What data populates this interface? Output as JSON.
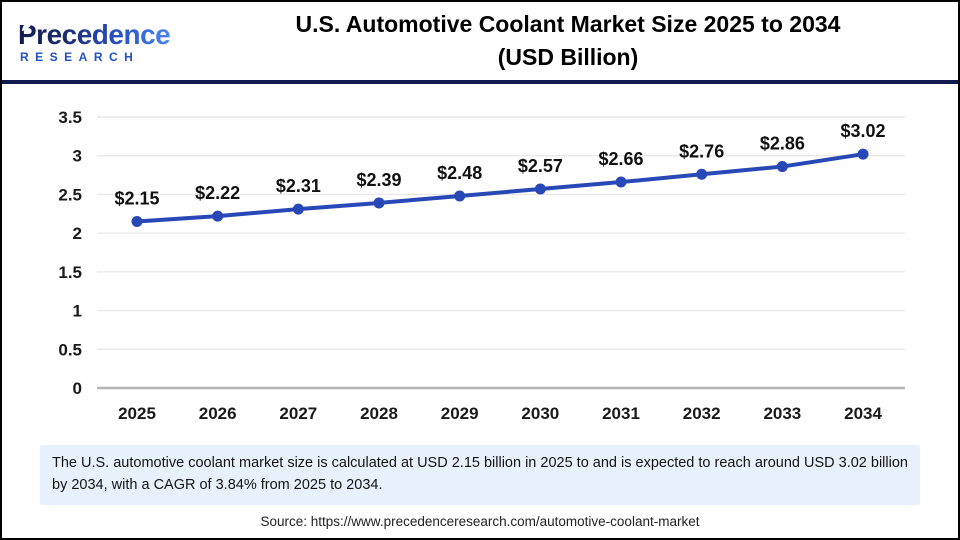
{
  "header": {
    "logo": {
      "brand": "Precedence",
      "sub": "RESEARCH"
    },
    "title_line1": "U.S. Automotive Coolant Market Size 2025 to 2034",
    "title_line2": "(USD Billion)"
  },
  "chart_data": {
    "type": "line",
    "title": "U.S. Automotive Coolant Market Size 2025 to 2034 (USD Billion)",
    "categories": [
      "2025",
      "2026",
      "2027",
      "2028",
      "2029",
      "2030",
      "2031",
      "2032",
      "2033",
      "2034"
    ],
    "values": [
      2.15,
      2.22,
      2.31,
      2.39,
      2.48,
      2.57,
      2.66,
      2.76,
      2.86,
      3.02
    ],
    "point_labels": [
      "$2.15",
      "$2.22",
      "$2.31",
      "$2.39",
      "$2.48",
      "$2.57",
      "$2.66",
      "$2.76",
      "$2.86",
      "$3.02"
    ],
    "ylim": [
      0,
      3.5
    ],
    "y_ticks": [
      0,
      0.5,
      1,
      1.5,
      2,
      2.5,
      3,
      3.5
    ],
    "grid": true,
    "legend": "none",
    "line_color": "#2748b6",
    "marker": "circle"
  },
  "footer": {
    "description": "The U.S. automotive coolant market size is calculated at USD 2.15 billion in 2025 to and is expected to reach around USD 3.02 billion by 2034, with a CAGR of 3.84% from 2025 to 2034.",
    "source": "Source: https://www.precedenceresearch.com/automotive-coolant-market"
  }
}
